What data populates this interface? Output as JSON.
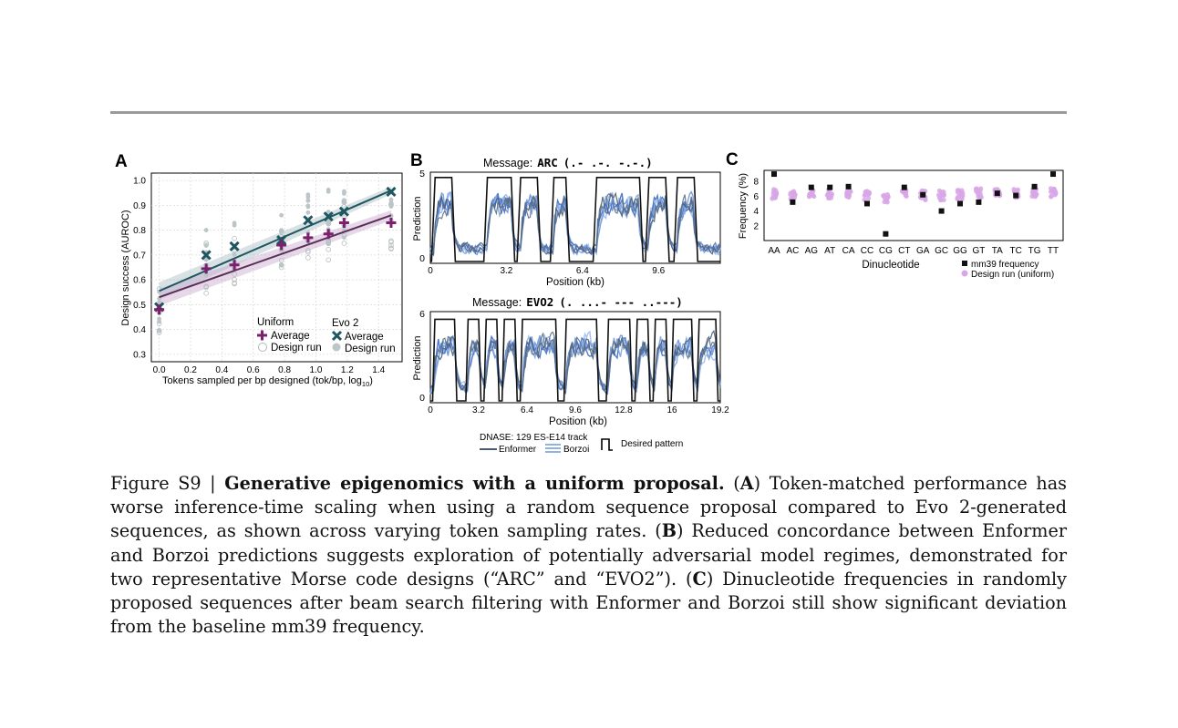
{
  "panelA": {
    "label": "A",
    "ylabel": "Design success (AUROC)",
    "xlabel": "Tokens sampled per bp designed (tok/bp, log",
    "xlabel_sub": "10",
    "xlabel_end": ")",
    "yticks": [
      "1.0",
      "0.9",
      "0.8",
      "0.7",
      "0.6",
      "0.5",
      "0.4",
      "0.3"
    ],
    "xticks": [
      "0.0",
      "0.2",
      "0.4",
      "0.6",
      "0.8",
      "1.0",
      "1.2",
      "1.4"
    ],
    "legend": {
      "uniform_title": "Uniform",
      "evo_title": "Evo 2",
      "average": "Average",
      "design_run": "Design run"
    },
    "colors": {
      "uniform": "#7b1f6e",
      "evo": "#1e5661",
      "runs": "#bcc6c9"
    }
  },
  "panelB": {
    "label": "B",
    "top": {
      "prefix": "Message:",
      "word": "ARC",
      "morse": "(.- .-. -.-.)",
      "ymax": "5",
      "ymin": "0",
      "xticks": [
        "0",
        "3.2",
        "6.4",
        "9.6"
      ]
    },
    "bottom": {
      "prefix": "Message:",
      "word": "EVO2",
      "morse": "(. ...- --- ..---)",
      "ymax": "6",
      "ymin": "0",
      "xticks": [
        "0",
        "3.2",
        "6.4",
        "9.6",
        "12.8",
        "16",
        "19.2"
      ]
    },
    "ylabel": "Prediction",
    "xlabel": "Position (kb)",
    "legend": {
      "track": "DNASE: 129 ES-E14 track",
      "enformer": "Enformer",
      "borzoi": "Borzoi",
      "desired": "Desired pattern"
    }
  },
  "panelC": {
    "label": "C",
    "ylabel": "Frequency (%)",
    "xlabel": "Dinucleotide",
    "yticks": [
      "8",
      "6",
      "4",
      "2"
    ],
    "categories": [
      "AA",
      "AC",
      "AG",
      "AT",
      "CA",
      "CC",
      "CG",
      "CT",
      "GA",
      "GC",
      "GG",
      "GT",
      "TA",
      "TC",
      "TG",
      "TT"
    ],
    "legend": {
      "mm39": "mm39 frequency",
      "design": "Design run (uniform)"
    }
  },
  "chart_data": [
    {
      "type": "scatter",
      "title": "",
      "xlabel": "Tokens sampled per bp designed (tok/bp, log10)",
      "ylabel": "Design success (AUROC)",
      "xlim": [
        -0.05,
        1.55
      ],
      "ylim": [
        0.27,
        1.03
      ],
      "series": [
        {
          "name": "Uniform Average",
          "x": [
            0.0,
            0.3,
            0.48,
            0.78,
            0.95,
            1.08,
            1.18,
            1.48
          ],
          "y": [
            0.48,
            0.645,
            0.66,
            0.74,
            0.77,
            0.785,
            0.83,
            0.83
          ]
        },
        {
          "name": "Evo 2 Average",
          "x": [
            0.0,
            0.3,
            0.48,
            0.78,
            0.95,
            1.08,
            1.18,
            1.48
          ],
          "y": [
            0.49,
            0.7,
            0.735,
            0.76,
            0.84,
            0.855,
            0.875,
            0.955
          ]
        },
        {
          "name": "Uniform fit",
          "x": [
            0.0,
            1.48
          ],
          "y": [
            0.53,
            0.86
          ]
        },
        {
          "name": "Evo 2 fit",
          "x": [
            0.0,
            1.48
          ],
          "y": [
            0.555,
            0.96
          ]
        }
      ]
    },
    {
      "type": "line",
      "title": "Message: ARC (.- .-. -.-.)",
      "xlabel": "Position (kb)",
      "ylabel": "Prediction",
      "xlim": [
        0,
        12.2
      ],
      "ylim": [
        0,
        5
      ],
      "series": [
        {
          "name": "Desired pattern",
          "segments_kb": [
            [
              0.2,
              0.9
            ],
            [
              2.4,
              3.4
            ],
            [
              3.8,
              4.5
            ],
            [
              5.2,
              5.7
            ],
            [
              7.0,
              8.8
            ],
            [
              9.2,
              9.9
            ],
            [
              10.4,
              11.1
            ]
          ],
          "high": 4.8,
          "low": 0
        }
      ]
    },
    {
      "type": "line",
      "title": "Message: EVO2 (. ...- --- ..---)",
      "xlabel": "Position (kb)",
      "ylabel": "Prediction",
      "xlim": [
        0,
        19.2
      ],
      "ylim": [
        0,
        6
      ],
      "series": [
        {
          "name": "Desired pattern",
          "segments_kb": [
            [
              0.3,
              1.6
            ],
            [
              2.5,
              3.2
            ],
            [
              3.7,
              4.4
            ],
            [
              4.9,
              5.6
            ],
            [
              6.1,
              8.3
            ],
            [
              9.0,
              11.0
            ],
            [
              11.8,
              13.2
            ],
            [
              13.7,
              14.4
            ],
            [
              14.9,
              15.6
            ],
            [
              16.1,
              17.3
            ],
            [
              17.8,
              18.9
            ]
          ],
          "high": 5.6,
          "low": 0
        }
      ]
    },
    {
      "type": "scatter",
      "title": "",
      "xlabel": "Dinucleotide",
      "ylabel": "Frequency (%)",
      "ylim": [
        0,
        9.5
      ],
      "categories": [
        "AA",
        "AC",
        "AG",
        "AT",
        "CA",
        "CC",
        "CG",
        "CT",
        "GA",
        "GC",
        "GG",
        "GT",
        "TA",
        "TC",
        "TG",
        "TT"
      ],
      "series": [
        {
          "name": "mm39 frequency",
          "values": [
            9.0,
            5.2,
            7.2,
            7.2,
            7.3,
            5.0,
            0.9,
            7.2,
            6.2,
            4.0,
            5.0,
            5.2,
            6.4,
            6.1,
            7.3,
            9.0
          ]
        },
        {
          "name": "Design run (uniform)",
          "values": [
            6.3,
            6.1,
            6.5,
            6.3,
            6.3,
            6.1,
            5.6,
            6.5,
            6.1,
            6.1,
            6.2,
            6.4,
            6.6,
            6.3,
            6.6,
            6.5
          ]
        }
      ]
    }
  ],
  "caption": {
    "fig": "Figure S9 |",
    "title": "Generative epigenomics with a uniform proposal.",
    "A_label": "A",
    "A_text": "Token-matched performance has worse inference-time scaling when using a random sequence proposal compared to Evo 2-generated sequences, as shown across varying token sampling rates.",
    "B_label": "B",
    "B_text": "Reduced concordance between Enformer and Borzoi predictions suggests exploration of potentially adversarial model regimes, demonstrated for two representative Morse code designs (“ARC” and “EVO2”).",
    "C_label": "C",
    "C_text": "Dinucleotide frequencies in randomly proposed sequences after beam search filtering with Enformer and Borzoi still show significant deviation from the baseline mm39 frequency."
  }
}
